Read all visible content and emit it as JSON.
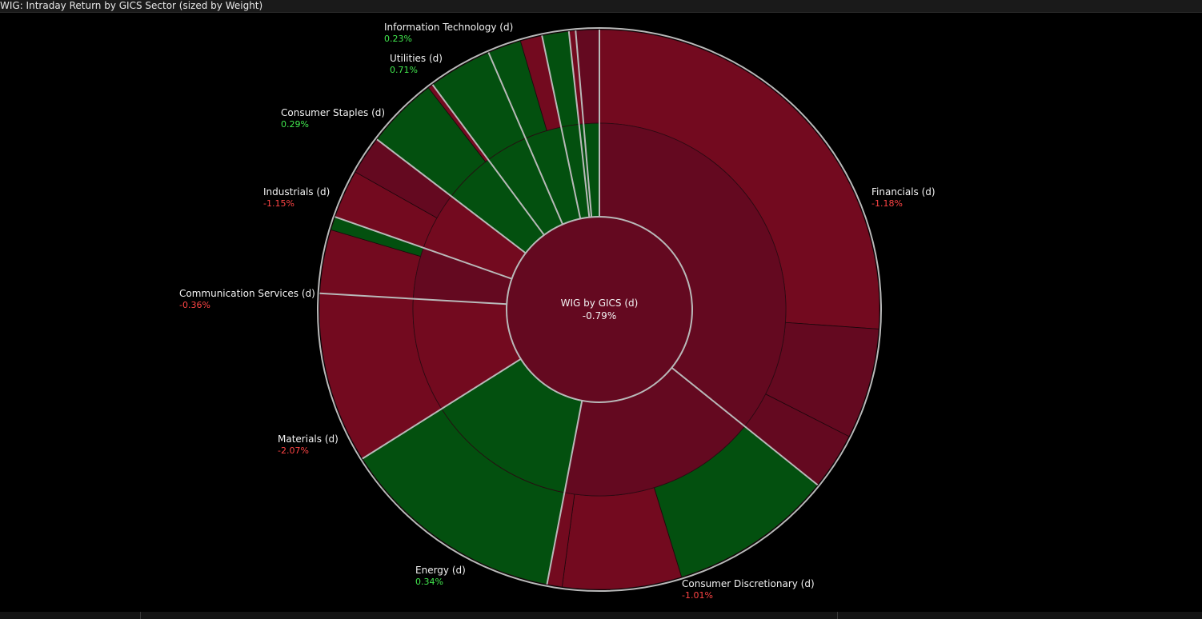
{
  "title": "WIG: Intraday Return by GICS Sector (sized by Weight)",
  "colors": {
    "background": "#000000",
    "positive": "#03500f",
    "negative": "#730a1f",
    "negative_dark": "#640920",
    "separator": "#b9b9b9",
    "label_positive": "#42e84e",
    "label_negative": "#ff4444"
  },
  "chart_data": {
    "type": "sunburst",
    "center": {
      "name": "WIG by GICS (d)",
      "value": "-0.79%"
    },
    "sectors": [
      {
        "name": "Financials (d)",
        "value": "-1.18%",
        "weight": 37.0,
        "sign": "negative",
        "inner_shade": "dark",
        "constituents": [
          {
            "weight": 27.0,
            "sign": "negative"
          },
          {
            "weight": 6.6,
            "sign": "negative_dark"
          },
          {
            "weight": 3.4,
            "sign": "negative_dark"
          }
        ]
      },
      {
        "name": "Consumer Discretionary (d)",
        "value": "-1.01%",
        "weight": 17.8,
        "sign": "negative",
        "inner_shade": "dark",
        "constituents": [
          {
            "weight": 9.8,
            "sign": "positive"
          },
          {
            "weight": 7.1,
            "sign": "negative"
          },
          {
            "weight": 0.9,
            "sign": "negative"
          }
        ]
      },
      {
        "name": "Energy (d)",
        "value": "0.34%",
        "weight": 13.5,
        "sign": "positive",
        "inner_shade": "normal",
        "constituents": [
          {
            "weight": 13.5,
            "sign": "positive"
          }
        ]
      },
      {
        "name": "Materials (d)",
        "value": "-2.07%",
        "weight": 10.2,
        "sign": "negative",
        "inner_shade": "normal",
        "constituents": [
          {
            "weight": 10.2,
            "sign": "negative"
          }
        ]
      },
      {
        "name": "Communication Services (d)",
        "value": "-0.36%",
        "weight": 4.6,
        "sign": "negative",
        "inner_shade": "dark",
        "constituents": [
          {
            "weight": 3.8,
            "sign": "negative"
          },
          {
            "weight": 0.8,
            "sign": "positive"
          }
        ]
      },
      {
        "name": "Industrials (d)",
        "value": "-1.15%",
        "weight": 5.2,
        "sign": "negative",
        "inner_shade": "normal",
        "constituents": [
          {
            "weight": 2.9,
            "sign": "negative"
          },
          {
            "weight": 2.3,
            "sign": "negative_dark"
          }
        ]
      },
      {
        "name": "Consumer Staples (d)",
        "value": "0.29%",
        "weight": 4.6,
        "sign": "positive",
        "inner_shade": "normal",
        "constituents": [
          {
            "weight": 4.3,
            "sign": "positive"
          },
          {
            "weight": 0.3,
            "sign": "negative"
          }
        ]
      },
      {
        "name": "Utilities (d)",
        "value": "0.71%",
        "weight": 3.8,
        "sign": "positive",
        "inner_shade": "normal",
        "constituents": [
          {
            "weight": 3.8,
            "sign": "positive"
          }
        ]
      },
      {
        "name": "Information Technology (d)",
        "value": "0.23%",
        "weight": 3.3,
        "sign": "positive",
        "inner_shade": "normal",
        "constituents": [
          {
            "weight": 2.0,
            "sign": "positive"
          },
          {
            "weight": 1.3,
            "sign": "negative"
          }
        ]
      },
      {
        "name": "",
        "value": "",
        "weight": 1.6,
        "sign": "positive",
        "inner_shade": "normal",
        "constituents": [
          {
            "weight": 1.6,
            "sign": "positive"
          }
        ]
      },
      {
        "name": "",
        "value": "",
        "weight": 0.4,
        "sign": "positive",
        "inner_shade": "normal",
        "constituents": [
          {
            "weight": 0.4,
            "sign": "negative"
          }
        ]
      },
      {
        "name": "",
        "value": "",
        "weight": 1.4,
        "sign": "positive",
        "inner_shade": "normal",
        "constituents": [
          {
            "weight": 1.4,
            "sign": "negative_dark"
          }
        ]
      }
    ]
  }
}
